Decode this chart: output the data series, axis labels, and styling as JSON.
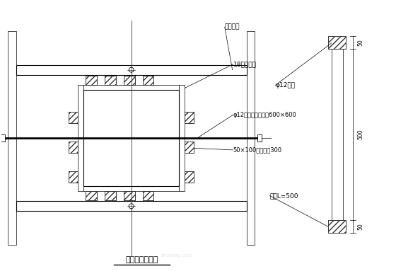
{
  "bg_color": "#ffffff",
  "line_color": "#000000",
  "title": "对拉螺杆大样图",
  "labels": {
    "gangguan_zhugu": "钢管柱箍",
    "heban": "18厚胶合板",
    "luogan": "φ12圆钢",
    "luogan2": "φ12对拉螺丝杆间距600×600",
    "muban": "50×100木枋间距300",
    "gongsi": "攻丝L=500"
  },
  "dim_50_top": "50",
  "dim_500": "500",
  "dim_50_bot": "50",
  "fig_width": 5.6,
  "fig_height": 3.9,
  "dpi": 100
}
